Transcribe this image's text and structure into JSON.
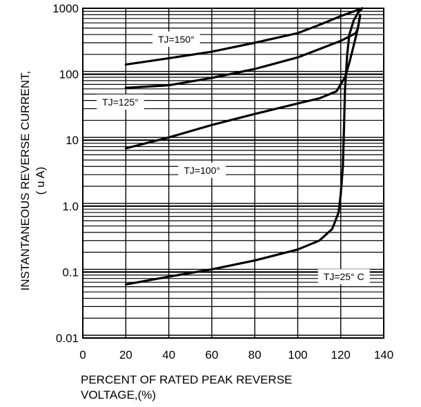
{
  "chart_data": {
    "type": "line",
    "y_scale": "log",
    "xlim": [
      0,
      140
    ],
    "ylim": [
      0.01,
      1000
    ],
    "grid": true,
    "x_ticks": [
      "0",
      "20",
      "40",
      "60",
      "80",
      "100",
      "120",
      "140"
    ],
    "y_ticks": [
      "1000",
      "100",
      "10",
      "1.0",
      "0.1",
      "0.01"
    ],
    "ylabel_line1": "INSTANTANEOUS REVERSE CURRENT,",
    "ylabel_line2": "( u A)",
    "xlabel_line1": "PERCENT OF RATED PEAK REVERSE",
    "xlabel_line2": "VOLTAGE,(%)",
    "series": [
      {
        "name": "TJ=150°",
        "x": [
          20,
          40,
          60,
          80,
          100,
          110,
          120,
          130
        ],
        "y": [
          140,
          175,
          220,
          300,
          420,
          560,
          760,
          1000
        ]
      },
      {
        "name": "TJ=125°",
        "x": [
          20,
          40,
          60,
          80,
          100,
          110,
          120,
          127,
          128,
          129
        ],
        "y": [
          62,
          68,
          88,
          120,
          180,
          240,
          320,
          420,
          500,
          750
        ]
      },
      {
        "name": "TJ=100°",
        "x": [
          20,
          40,
          60,
          80,
          100,
          110,
          118,
          122,
          124,
          126,
          128,
          129
        ],
        "y": [
          7.5,
          11,
          17,
          25,
          36,
          43,
          55,
          90,
          150,
          270,
          500,
          800
        ]
      },
      {
        "name": "TJ=25° C",
        "x": [
          20,
          40,
          60,
          80,
          100,
          110,
          116,
          119,
          120,
          121,
          121.5,
          122,
          123,
          124,
          126,
          128,
          130
        ],
        "y": [
          0.065,
          0.085,
          0.11,
          0.15,
          0.22,
          0.3,
          0.45,
          0.8,
          1.5,
          4,
          15,
          60,
          200,
          400,
          650,
          850,
          1000
        ]
      }
    ]
  }
}
